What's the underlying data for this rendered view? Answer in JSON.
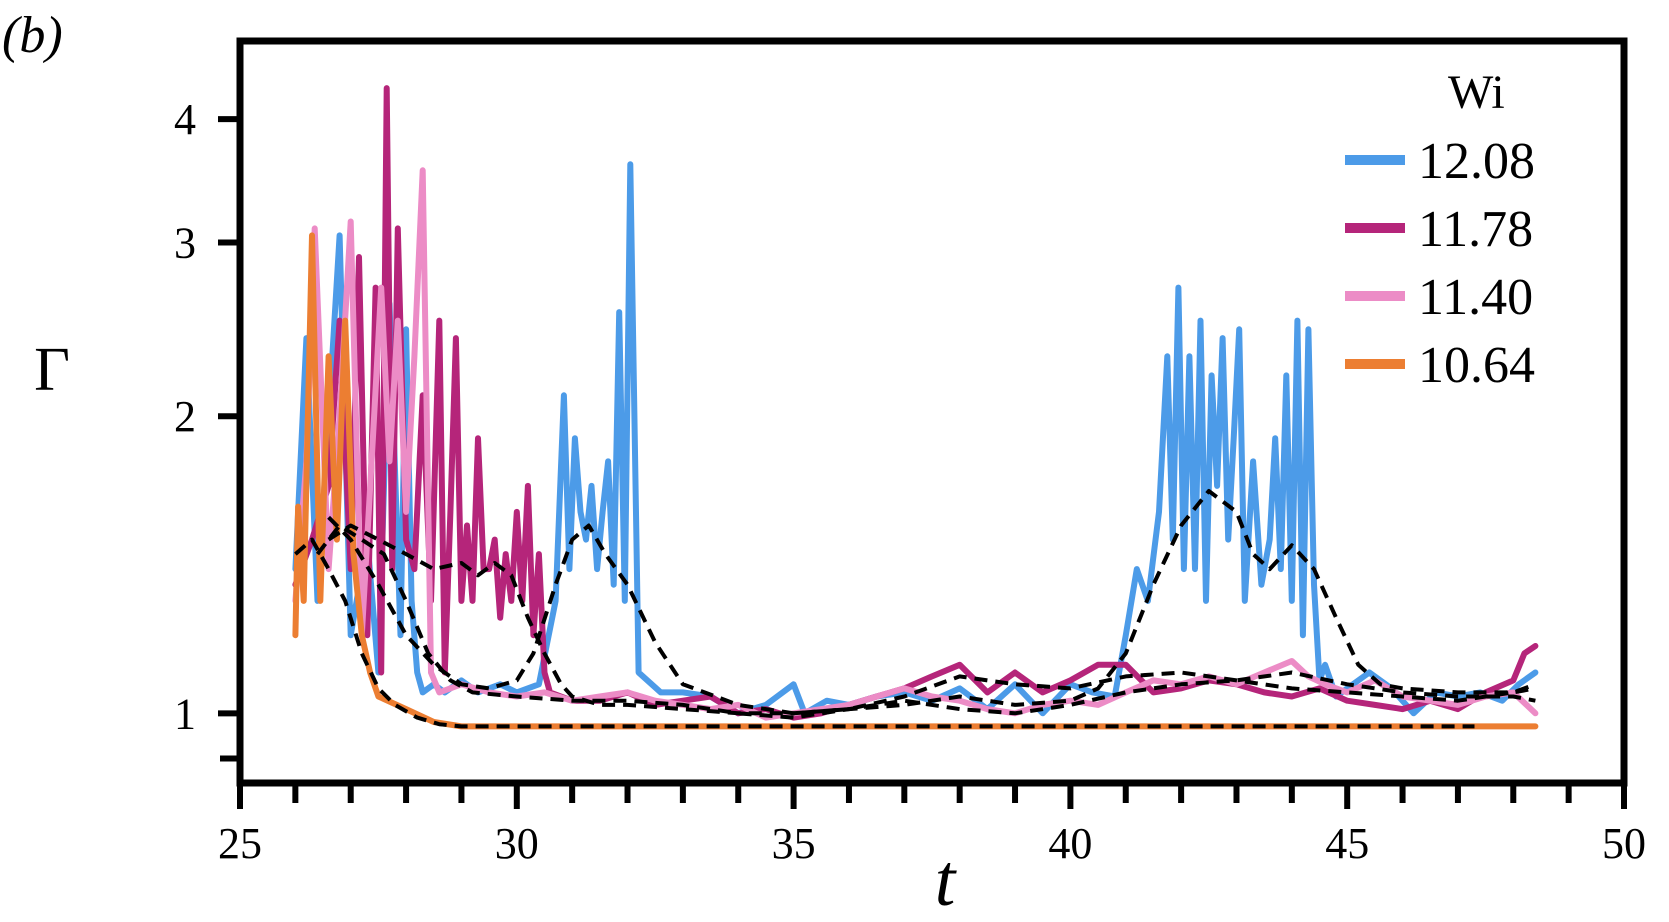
{
  "panel_label": "(b)",
  "colors": {
    "wi_12_08": "#4c9be8",
    "wi_11_78": "#b5257a",
    "wi_11_40": "#ec8cc6",
    "wi_10_64": "#ec7e32",
    "smoothed": "#000000",
    "axes": "#000000"
  },
  "chart_data": {
    "type": "line",
    "title": "",
    "xlabel": "t",
    "ylabel": "Γ",
    "xlim": [
      25,
      50
    ],
    "ylim": [
      0.85,
      4.8
    ],
    "y_scale": "log",
    "grid": false,
    "legend": {
      "title": "Wi",
      "placement": "top-right"
    },
    "x_ticks": [
      "25",
      "30",
      "35",
      "40",
      "45",
      "50"
    ],
    "y_ticks": [
      "1",
      "2",
      "3",
      "4"
    ],
    "series": [
      {
        "name": "12.08",
        "color": "#4c9be8",
        "x": [
          26.0,
          26.2,
          26.4,
          26.8,
          27.0,
          27.3,
          27.5,
          27.7,
          27.9,
          28.0,
          28.1,
          28.2,
          28.3,
          28.5,
          28.7,
          29.0,
          29.3,
          29.7,
          30.0,
          30.4,
          30.7,
          30.85,
          30.95,
          31.05,
          31.15,
          31.25,
          31.35,
          31.45,
          31.55,
          31.65,
          31.75,
          31.85,
          31.95,
          32.05,
          32.2,
          32.6,
          33.0,
          33.5,
          34.0,
          34.5,
          35.0,
          35.2,
          35.6,
          36.0,
          36.5,
          37.0,
          37.5,
          38.0,
          38.5,
          39.0,
          39.5,
          40.0,
          40.4,
          40.8,
          41.0,
          41.2,
          41.4,
          41.6,
          41.75,
          41.85,
          41.95,
          42.05,
          42.15,
          42.25,
          42.35,
          42.45,
          42.55,
          42.65,
          42.75,
          42.85,
          42.95,
          43.05,
          43.15,
          43.3,
          43.45,
          43.6,
          43.7,
          43.8,
          43.9,
          44.0,
          44.1,
          44.2,
          44.3,
          44.4,
          44.5,
          44.6,
          44.8,
          45.0,
          45.4,
          45.8,
          46.2,
          46.6,
          47.0,
          47.4,
          47.8,
          48.1,
          48.4
        ],
        "y": [
          1.4,
          2.4,
          1.3,
          3.05,
          1.2,
          1.5,
          1.1,
          2.6,
          1.2,
          2.45,
          1.3,
          1.1,
          1.05,
          1.07,
          1.05,
          1.08,
          1.05,
          1.07,
          1.05,
          1.07,
          1.3,
          2.1,
          1.4,
          1.9,
          1.6,
          1.5,
          1.7,
          1.4,
          1.6,
          1.8,
          1.35,
          2.55,
          1.3,
          3.6,
          1.1,
          1.05,
          1.05,
          1.04,
          1.0,
          1.02,
          1.07,
          1.0,
          1.03,
          1.02,
          1.04,
          1.05,
          1.03,
          1.06,
          1.01,
          1.07,
          1.0,
          1.07,
          1.05,
          1.04,
          1.2,
          1.4,
          1.3,
          1.6,
          2.3,
          1.5,
          2.7,
          1.4,
          2.3,
          1.4,
          2.5,
          1.3,
          2.2,
          1.7,
          2.4,
          1.5,
          1.9,
          2.45,
          1.3,
          1.8,
          1.35,
          1.5,
          1.9,
          1.4,
          2.2,
          1.3,
          2.5,
          1.2,
          2.45,
          1.35,
          1.08,
          1.12,
          1.04,
          1.06,
          1.1,
          1.06,
          1.0,
          1.05,
          1.04,
          1.05,
          1.03,
          1.07,
          1.1
        ]
      },
      {
        "name": "11.78",
        "color": "#b5257a",
        "x": [
          26.0,
          26.3,
          26.6,
          26.8,
          27.0,
          27.15,
          27.3,
          27.45,
          27.55,
          27.65,
          27.75,
          27.85,
          28.0,
          28.15,
          28.3,
          28.45,
          28.6,
          28.7,
          28.8,
          28.9,
          29.0,
          29.1,
          29.2,
          29.3,
          29.4,
          29.5,
          29.6,
          29.7,
          29.8,
          29.9,
          30.0,
          30.1,
          30.2,
          30.3,
          30.4,
          30.5,
          30.6,
          31.0,
          31.5,
          32.0,
          32.5,
          33.0,
          33.5,
          34.0,
          34.5,
          35.0,
          35.5,
          36.0,
          36.5,
          37.0,
          37.5,
          38.0,
          38.5,
          39.0,
          39.5,
          40.0,
          40.5,
          41.0,
          41.5,
          42.0,
          42.5,
          43.0,
          43.5,
          44.0,
          44.5,
          45.0,
          45.5,
          46.0,
          46.5,
          47.0,
          47.5,
          48.0,
          48.2,
          48.4
        ],
        "y": [
          1.35,
          1.5,
          1.7,
          2.5,
          1.4,
          2.9,
          1.2,
          2.7,
          1.1,
          4.3,
          1.4,
          3.1,
          1.5,
          1.4,
          2.1,
          1.3,
          2.5,
          1.1,
          1.6,
          2.4,
          1.3,
          1.55,
          1.3,
          1.9,
          1.4,
          1.4,
          1.5,
          1.25,
          1.45,
          1.3,
          1.6,
          1.3,
          1.7,
          1.2,
          1.45,
          1.1,
          1.05,
          1.03,
          1.03,
          1.05,
          1.02,
          1.03,
          1.04,
          1.0,
          1.01,
          0.99,
          1.0,
          1.02,
          1.04,
          1.06,
          1.09,
          1.12,
          1.05,
          1.1,
          1.05,
          1.08,
          1.12,
          1.12,
          1.05,
          1.06,
          1.08,
          1.07,
          1.05,
          1.04,
          1.06,
          1.03,
          1.02,
          1.01,
          1.03,
          1.01,
          1.05,
          1.08,
          1.15,
          1.17
        ]
      },
      {
        "name": "11.40",
        "color": "#ec8cc6",
        "x": [
          26.0,
          26.2,
          26.35,
          26.6,
          26.8,
          27.0,
          27.2,
          27.4,
          27.55,
          27.7,
          27.85,
          28.0,
          28.15,
          28.3,
          28.45,
          28.6,
          29.0,
          29.5,
          30.0,
          30.5,
          31.0,
          31.5,
          32.0,
          32.5,
          33.0,
          33.5,
          34.0,
          34.5,
          35.0,
          35.5,
          36.0,
          36.5,
          37.0,
          37.5,
          38.0,
          38.5,
          39.0,
          39.5,
          40.0,
          40.5,
          41.0,
          41.5,
          42.0,
          42.5,
          43.0,
          43.5,
          44.0,
          44.3,
          44.6,
          45.0,
          45.5,
          46.0,
          46.5,
          47.0,
          47.5,
          48.0,
          48.4
        ],
        "y": [
          1.3,
          1.8,
          3.1,
          1.4,
          2.0,
          3.15,
          1.2,
          1.9,
          2.7,
          1.8,
          2.5,
          1.6,
          2.3,
          3.55,
          1.1,
          1.05,
          1.07,
          1.05,
          1.04,
          1.05,
          1.03,
          1.04,
          1.05,
          1.03,
          1.02,
          1.01,
          1.02,
          0.99,
          1.0,
          1.01,
          1.02,
          1.04,
          1.06,
          1.04,
          1.03,
          1.01,
          1.0,
          1.02,
          1.03,
          1.02,
          1.05,
          1.08,
          1.07,
          1.09,
          1.07,
          1.1,
          1.13,
          1.09,
          1.07,
          1.05,
          1.08,
          1.04,
          1.03,
          1.02,
          1.04,
          1.05,
          1.0
        ]
      },
      {
        "name": "10.64",
        "color": "#ec7e32",
        "x": [
          26.0,
          26.05,
          26.15,
          26.3,
          26.45,
          26.6,
          26.75,
          26.9,
          27.05,
          27.2,
          27.35,
          27.5,
          28.0,
          28.5,
          29.0,
          30.0,
          32.0,
          35.0,
          40.0,
          45.0,
          48.4
        ],
        "y": [
          1.2,
          1.62,
          1.3,
          3.05,
          1.3,
          2.3,
          1.5,
          2.5,
          1.45,
          1.2,
          1.1,
          1.04,
          1.01,
          0.98,
          0.97,
          0.97,
          0.97,
          0.97,
          0.97,
          0.97,
          0.97
        ]
      }
    ],
    "smoothed_curves": [
      {
        "x": [
          26.6,
          27.0,
          27.5,
          28.0,
          28.5,
          29.0,
          29.5,
          30.0,
          30.3,
          30.7,
          31.0,
          31.3,
          31.6,
          32.0,
          32.5,
          33.0,
          34.0,
          35.0,
          36.0,
          37.0,
          38.0,
          39.0,
          40.0,
          40.5,
          41.0,
          41.5,
          42.0,
          42.5,
          43.0,
          43.3,
          43.6,
          44.0,
          44.4,
          44.8,
          45.2,
          45.6,
          46.0,
          47.0,
          48.0,
          48.4
        ],
        "y": [
          1.58,
          1.5,
          1.35,
          1.2,
          1.12,
          1.07,
          1.06,
          1.08,
          1.15,
          1.35,
          1.5,
          1.55,
          1.45,
          1.35,
          1.18,
          1.07,
          1.02,
          1.0,
          1.01,
          1.02,
          1.04,
          1.02,
          1.03,
          1.06,
          1.15,
          1.35,
          1.55,
          1.68,
          1.6,
          1.45,
          1.4,
          1.48,
          1.4,
          1.25,
          1.12,
          1.07,
          1.06,
          1.05,
          1.05,
          1.06
        ]
      },
      {
        "x": [
          26.6,
          27.0,
          27.5,
          28.0,
          28.5,
          29.0,
          29.3,
          29.6,
          29.9,
          30.2,
          30.5,
          30.8,
          31.0,
          31.5,
          32.0,
          33.0,
          34.0,
          35.0,
          36.0,
          37.0,
          38.0,
          39.0,
          40.0,
          41.0,
          42.0,
          43.0,
          44.0,
          45.0,
          46.0,
          47.0,
          48.0,
          48.4
        ],
        "y": [
          1.5,
          1.55,
          1.5,
          1.45,
          1.4,
          1.42,
          1.38,
          1.42,
          1.38,
          1.25,
          1.15,
          1.07,
          1.04,
          1.02,
          1.02,
          1.01,
          1.0,
          1.0,
          1.01,
          1.04,
          1.09,
          1.07,
          1.06,
          1.09,
          1.1,
          1.08,
          1.06,
          1.05,
          1.04,
          1.03,
          1.05,
          1.07
        ]
      },
      {
        "x": [
          26.4,
          26.8,
          27.2,
          27.6,
          28.0,
          28.4,
          28.8,
          29.2,
          30.0,
          31.0,
          32.0,
          33.0,
          34.0,
          35.0,
          36.0,
          37.0,
          38.0,
          39.0,
          40.0,
          41.0,
          42.0,
          43.0,
          44.0,
          45.0,
          46.0,
          47.0,
          48.0,
          48.4
        ],
        "y": [
          1.45,
          1.55,
          1.5,
          1.45,
          1.3,
          1.15,
          1.08,
          1.05,
          1.04,
          1.03,
          1.03,
          1.02,
          1.0,
          0.99,
          1.01,
          1.03,
          1.01,
          1.0,
          1.02,
          1.05,
          1.07,
          1.08,
          1.1,
          1.07,
          1.05,
          1.04,
          1.04,
          1.03
        ]
      },
      {
        "x": [
          26.0,
          26.3,
          26.6,
          26.9,
          27.2,
          27.5,
          27.8,
          28.2,
          28.6,
          29.0,
          29.5,
          30.0,
          32.0,
          35.0,
          40.0,
          45.0,
          47.3
        ],
        "y": [
          1.45,
          1.5,
          1.4,
          1.3,
          1.15,
          1.06,
          1.02,
          0.99,
          0.975,
          0.97,
          0.97,
          0.97,
          0.97,
          0.97,
          0.97,
          0.97,
          0.97
        ]
      }
    ]
  }
}
